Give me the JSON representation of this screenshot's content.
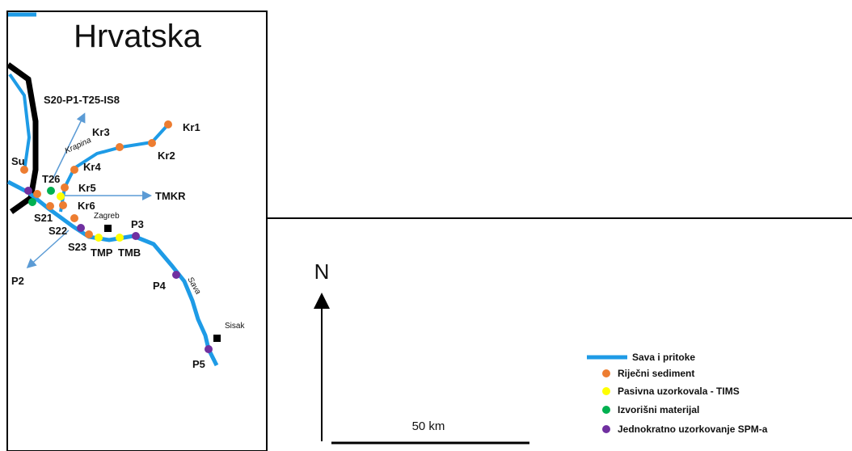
{
  "title": "Hrvatska",
  "sites": {
    "s20": "S20-P1-T25-IS8",
    "kr1": "Kr1",
    "kr2": "Kr2",
    "kr3": "Kr3",
    "kr4": "Kr4",
    "kr5": "Kr5",
    "kr6": "Kr6",
    "su": "Su",
    "t26": "T26",
    "tmkr": "TMKR",
    "s21": "S21",
    "s22": "S22",
    "s23": "S23",
    "tmp": "TMP",
    "tmb": "TMB",
    "p2": "P2",
    "p3": "P3",
    "p4": "P4",
    "p5": "P5"
  },
  "places": {
    "krapina": "Krapina",
    "zagreb": "Zagreb",
    "sava": "Sava",
    "sisak": "Sisak"
  },
  "north": "N",
  "scale": "50 km",
  "legend": [
    "Sava i pritoke",
    "Riječni sediment",
    "Pasivna uzorkovala - TIMS",
    "Izvorišni materijal",
    "Jednokratno uzorkovanje SPM-a"
  ]
}
